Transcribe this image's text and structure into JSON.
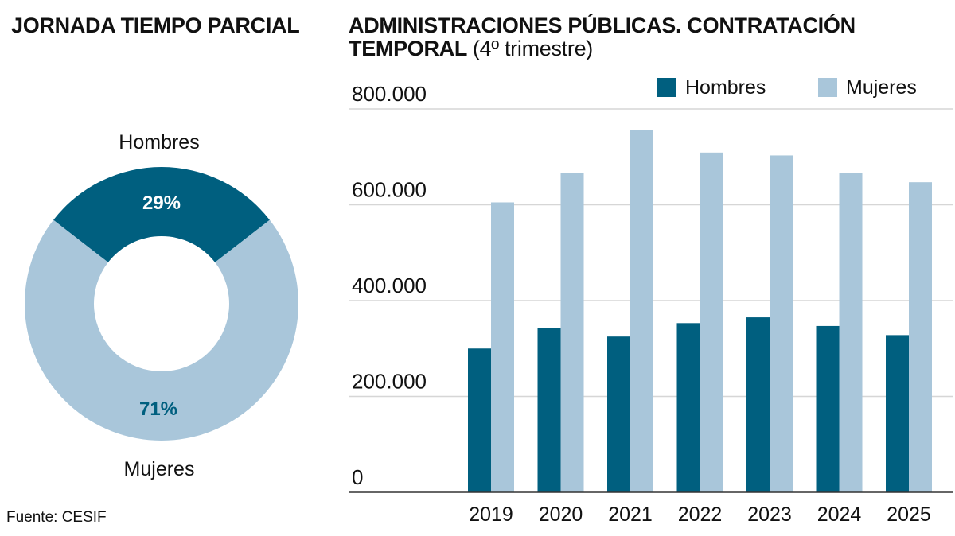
{
  "colors": {
    "hombres": "#005f7f",
    "mujeres": "#a9c6da",
    "grid": "#d6d6d6"
  },
  "source": "Fuente: CESIF",
  "chart_data": [
    {
      "type": "pie",
      "donut": true,
      "title": "JORNADA TIEMPO PARCIAL",
      "slices": [
        {
          "name": "Hombres",
          "value": 29,
          "label": "29%"
        },
        {
          "name": "Mujeres",
          "value": 71,
          "label": "71%"
        }
      ]
    },
    {
      "type": "bar",
      "title": "ADMINISTRACIONES PÚBLICAS. CONTRATACIÓN TEMPORAL",
      "subtitle": "(4º trimestre)",
      "categories": [
        "2019",
        "2020",
        "2021",
        "2022",
        "2023",
        "2024",
        "2025"
      ],
      "series": [
        {
          "name": "Hombres",
          "values": [
            300000,
            343000,
            325000,
            353000,
            365000,
            347000,
            328000
          ]
        },
        {
          "name": "Mujeres",
          "values": [
            605000,
            667000,
            756000,
            709000,
            703000,
            667000,
            647000
          ]
        }
      ],
      "ylim": [
        0,
        800000
      ],
      "yticks": [
        0,
        200000,
        400000,
        600000,
        800000
      ],
      "ytick_labels": [
        "0",
        "200.000",
        "400.000",
        "600.000",
        "800.000"
      ],
      "grid": true,
      "legend": "top-right"
    }
  ]
}
